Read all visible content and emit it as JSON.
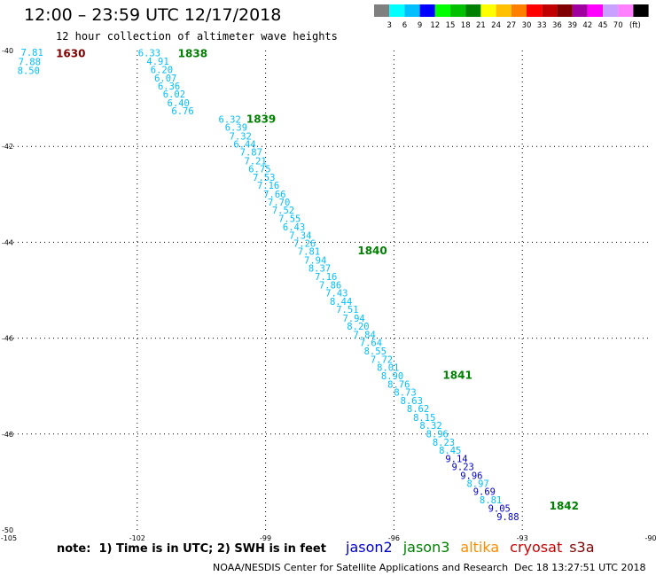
{
  "header": {
    "title": "12:00 – 23:59 UTC 12/17/2018",
    "subtitle": "12 hour collection of altimeter wave heights"
  },
  "colorbar": {
    "colors": [
      "#7f7f7f",
      "#00ffff",
      "#00bfff",
      "#0000ff",
      "#00ff00",
      "#00c000",
      "#008000",
      "#ffff00",
      "#ffc000",
      "#ff8000",
      "#ff0000",
      "#c00000",
      "#800000",
      "#a000a0",
      "#ff00ff",
      "#c8a0ff",
      "#ff80ff",
      "#000000"
    ],
    "labels": [
      "3",
      "6",
      "9",
      "12",
      "15",
      "18",
      "21",
      "24",
      "27",
      "30",
      "33",
      "36",
      "39",
      "42",
      "45",
      "70"
    ],
    "unit": "(ft)"
  },
  "footer": {
    "note": "note:  1) Time is in UTC; 2) SWH is in feet",
    "credit": "NOAA/NESDIS Center for Satellite Applications and Research",
    "timestamp": "Dec 18 13:27:51 UTC 2018",
    "satellites": [
      {
        "name": "jason2",
        "color": "#0000cc"
      },
      {
        "name": "jason3",
        "color": "#008000"
      },
      {
        "name": "altika",
        "color": "#ff8c00"
      },
      {
        "name": "cryosat",
        "color": "#cc0000"
      },
      {
        "name": "s3a",
        "color": "#800000"
      }
    ]
  },
  "chart_data": {
    "type": "scatter",
    "xlim": [
      -105,
      -90
    ],
    "ylim": [
      -50,
      -40
    ],
    "x_ticks": [
      -105,
      -102,
      -99,
      -96,
      -93,
      -90
    ],
    "y_ticks": [
      -40,
      -42,
      -44,
      -46,
      -48,
      -50
    ],
    "grid": true,
    "series": [
      {
        "name": "s3a",
        "color": "#800000",
        "time_labels": [
          {
            "text": "1630",
            "x": -103.9,
            "y": -40.05
          }
        ],
        "points": [
          {
            "x": -104.72,
            "y": -40.04,
            "v": "7.81",
            "color": "#00bfff"
          },
          {
            "x": -104.78,
            "y": -40.23,
            "v": "7.88",
            "color": "#00bfff"
          },
          {
            "x": -104.8,
            "y": -40.42,
            "v": "8.50",
            "color": "#00bfff"
          }
        ]
      },
      {
        "name": "jason3",
        "color": "#008000",
        "time_labels": [
          {
            "text": "1838",
            "x": -101.05,
            "y": -40.05
          },
          {
            "text": "1839",
            "x": -99.45,
            "y": -41.41
          },
          {
            "text": "1840",
            "x": -96.85,
            "y": -44.16
          },
          {
            "text": "1841",
            "x": -94.86,
            "y": -46.76
          },
          {
            "text": "1842",
            "x": -92.37,
            "y": -49.48
          }
        ],
        "points": [
          {
            "x": -101.98,
            "y": -40.05,
            "v": "6.33",
            "color": "#00bfff"
          },
          {
            "x": -101.78,
            "y": -40.22,
            "v": "4.91",
            "color": "#00bfff"
          },
          {
            "x": -101.69,
            "y": -40.4,
            "v": "6.20",
            "color": "#00bfff"
          },
          {
            "x": -101.6,
            "y": -40.57,
            "v": "6.07",
            "color": "#00bfff"
          },
          {
            "x": -101.52,
            "y": -40.74,
            "v": "6.36",
            "color": "#00bfff"
          },
          {
            "x": -101.4,
            "y": -40.91,
            "v": "6.02",
            "color": "#00bfff"
          },
          {
            "x": -101.3,
            "y": -41.09,
            "v": "6.40",
            "color": "#00bfff"
          },
          {
            "x": -101.2,
            "y": -41.26,
            "v": "6.76",
            "color": "#00bfff"
          },
          {
            "x": -100.1,
            "y": -41.43,
            "v": "6.32",
            "color": "#00bfff"
          },
          {
            "x": -99.95,
            "y": -41.6,
            "v": "6.39",
            "color": "#00bfff"
          },
          {
            "x": -99.85,
            "y": -41.78,
            "v": "7.32",
            "color": "#00bfff"
          },
          {
            "x": -99.75,
            "y": -41.95,
            "v": "6.44",
            "color": "#00bfff"
          },
          {
            "x": -99.6,
            "y": -42.12,
            "v": "7.87",
            "color": "#00bfff"
          },
          {
            "x": -99.5,
            "y": -42.3,
            "v": "7.21",
            "color": "#00bfff"
          },
          {
            "x": -99.4,
            "y": -42.47,
            "v": "6.75",
            "color": "#00bfff"
          },
          {
            "x": -99.3,
            "y": -42.64,
            "v": "7.53",
            "color": "#00bfff"
          },
          {
            "x": -99.2,
            "y": -42.81,
            "v": "7.16",
            "color": "#00bfff"
          },
          {
            "x": -99.05,
            "y": -42.99,
            "v": "7.66",
            "color": "#00bfff"
          },
          {
            "x": -98.95,
            "y": -43.16,
            "v": "7.70",
            "color": "#00bfff"
          },
          {
            "x": -98.85,
            "y": -43.33,
            "v": "7.52",
            "color": "#00bfff"
          },
          {
            "x": -98.7,
            "y": -43.5,
            "v": "7.55",
            "color": "#00bfff"
          },
          {
            "x": -98.6,
            "y": -43.68,
            "v": "6.43",
            "color": "#00bfff"
          },
          {
            "x": -98.45,
            "y": -43.85,
            "v": "7.34",
            "color": "#00bfff"
          },
          {
            "x": -98.35,
            "y": -44.02,
            "v": "7.26",
            "color": "#00bfff"
          },
          {
            "x": -98.25,
            "y": -44.19,
            "v": "7.81",
            "color": "#00bfff"
          },
          {
            "x": -98.1,
            "y": -44.37,
            "v": "7.94",
            "color": "#00bfff"
          },
          {
            "x": -98.0,
            "y": -44.54,
            "v": "8.37",
            "color": "#00bfff"
          },
          {
            "x": -97.85,
            "y": -44.71,
            "v": "7.16",
            "color": "#00bfff"
          },
          {
            "x": -97.75,
            "y": -44.89,
            "v": "7.86",
            "color": "#00bfff"
          },
          {
            "x": -97.6,
            "y": -45.06,
            "v": "7.43",
            "color": "#00bfff"
          },
          {
            "x": -97.5,
            "y": -45.23,
            "v": "8.44",
            "color": "#00bfff"
          },
          {
            "x": -97.35,
            "y": -45.4,
            "v": "7.51",
            "color": "#00bfff"
          },
          {
            "x": -97.2,
            "y": -45.58,
            "v": "7.94",
            "color": "#00bfff"
          },
          {
            "x": -97.1,
            "y": -45.75,
            "v": "8.20",
            "color": "#00bfff"
          },
          {
            "x": -96.95,
            "y": -45.92,
            "v": "7.84",
            "color": "#00bfff"
          },
          {
            "x": -96.8,
            "y": -46.09,
            "v": "7.64",
            "color": "#00bfff"
          },
          {
            "x": -96.7,
            "y": -46.27,
            "v": "8.55",
            "color": "#00bfff"
          },
          {
            "x": -96.55,
            "y": -46.44,
            "v": "7.72",
            "color": "#00bfff"
          },
          {
            "x": -96.4,
            "y": -46.61,
            "v": "8.01",
            "color": "#00bfff"
          },
          {
            "x": -96.3,
            "y": -46.78,
            "v": "8.90",
            "color": "#00bfff"
          },
          {
            "x": -96.15,
            "y": -46.96,
            "v": "8.76",
            "color": "#00bfff"
          },
          {
            "x": -96.0,
            "y": -47.13,
            "v": "8.73",
            "color": "#00bfff"
          },
          {
            "x": -95.85,
            "y": -47.3,
            "v": "8.63",
            "color": "#00bfff"
          },
          {
            "x": -95.7,
            "y": -47.47,
            "v": "8.62",
            "color": "#00bfff"
          },
          {
            "x": -95.55,
            "y": -47.65,
            "v": "8.15",
            "color": "#00bfff"
          },
          {
            "x": -95.4,
            "y": -47.82,
            "v": "8.32",
            "color": "#00bfff"
          },
          {
            "x": -95.25,
            "y": -47.99,
            "v": "8.96",
            "color": "#00bfff"
          },
          {
            "x": -95.1,
            "y": -48.17,
            "v": "8.23",
            "color": "#00bfff"
          },
          {
            "x": -94.95,
            "y": -48.34,
            "v": "8.45",
            "color": "#00bfff"
          },
          {
            "x": -94.8,
            "y": -48.51,
            "v": "9.14",
            "color": "#0000cc"
          },
          {
            "x": -94.65,
            "y": -48.68,
            "v": "9.23",
            "color": "#0000cc"
          },
          {
            "x": -94.45,
            "y": -48.86,
            "v": "9.96",
            "color": "#0000cc"
          },
          {
            "x": -94.3,
            "y": -49.03,
            "v": "8.97",
            "color": "#00bfff"
          },
          {
            "x": -94.15,
            "y": -49.2,
            "v": "9.69",
            "color": "#0000cc"
          },
          {
            "x": -94.0,
            "y": -49.37,
            "v": "8.81",
            "color": "#00bfff"
          },
          {
            "x": -93.8,
            "y": -49.55,
            "v": "9.05",
            "color": "#0000cc"
          },
          {
            "x": -93.6,
            "y": -49.72,
            "v": "9.88",
            "color": "#0000cc"
          }
        ]
      }
    ]
  }
}
